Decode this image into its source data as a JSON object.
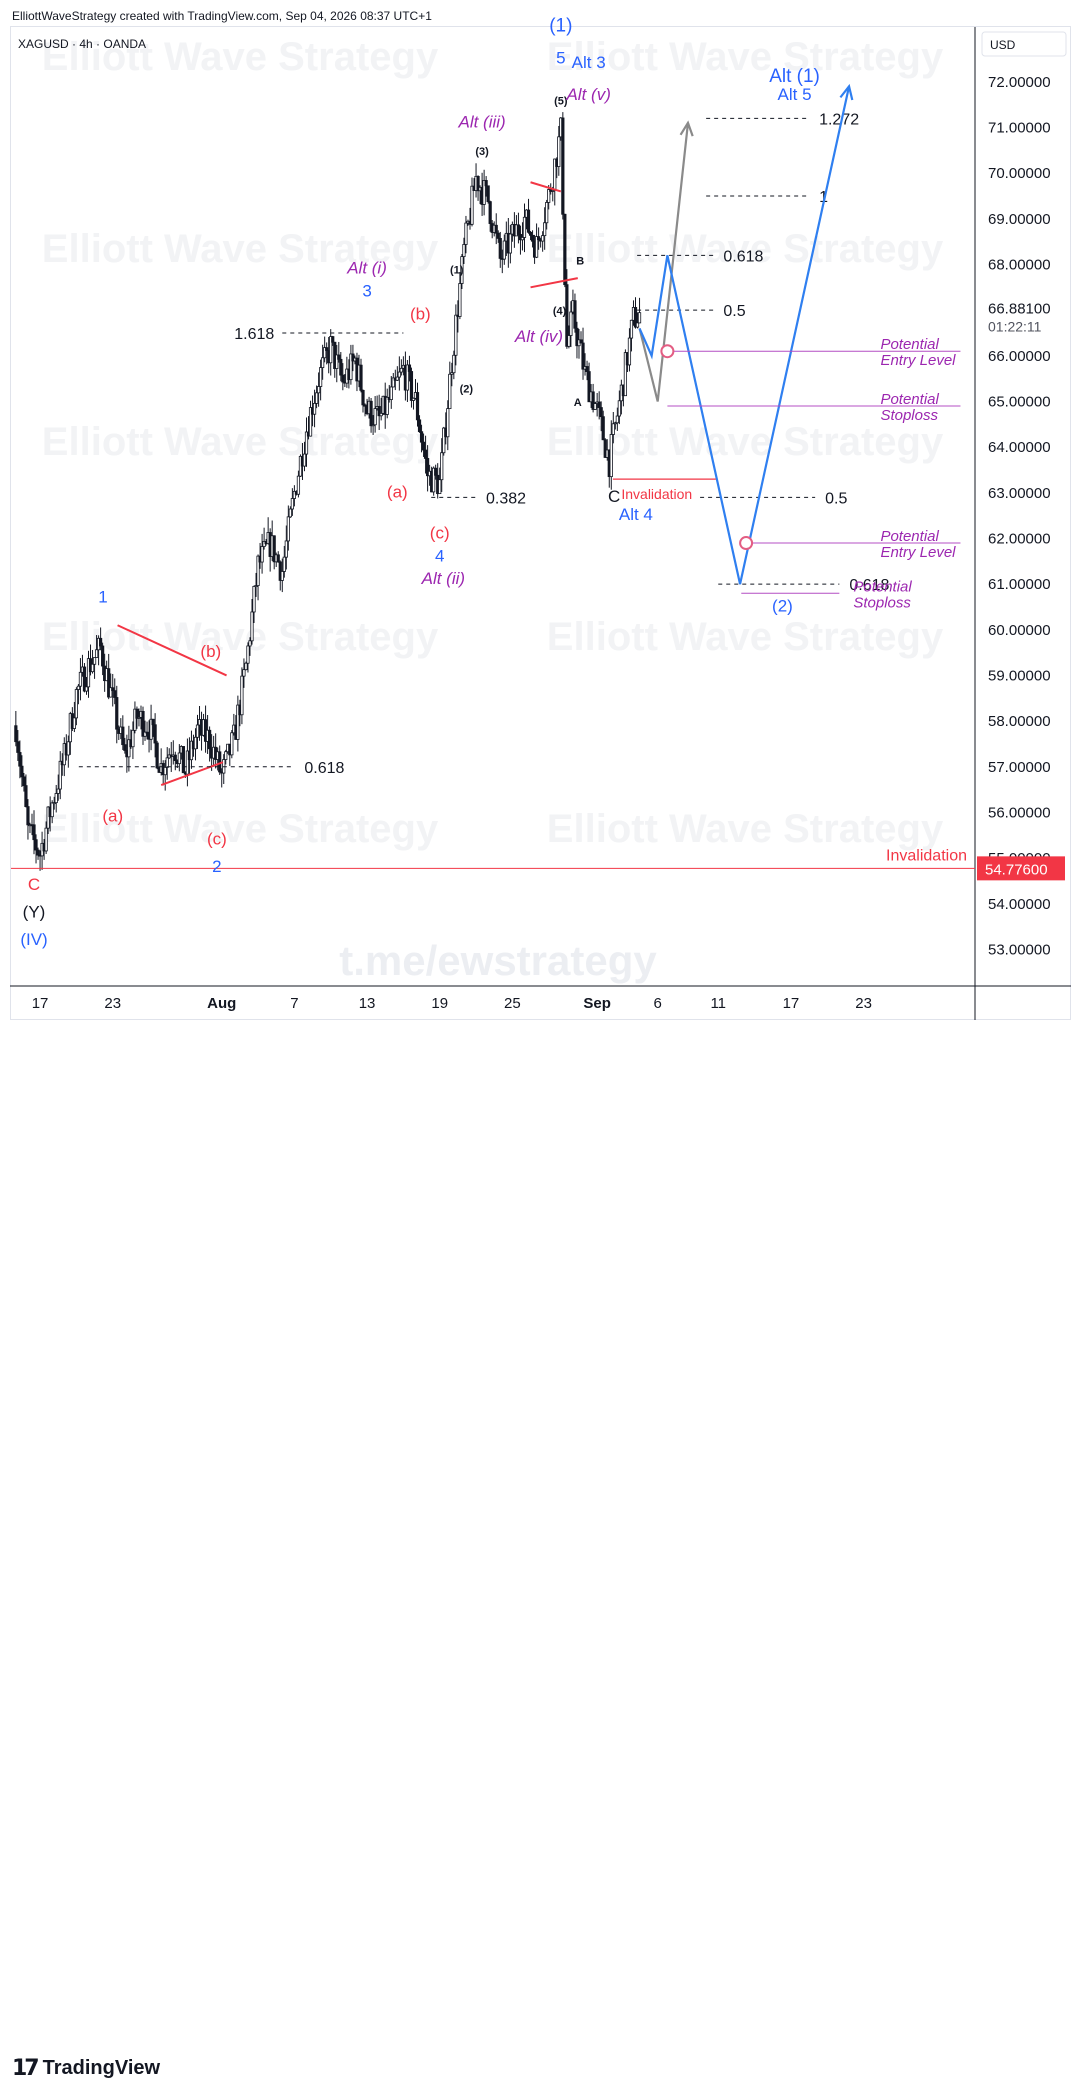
{
  "header": {
    "credit": "ElliottWaveStrategy created with TradingView.com, Sep 04, 2026 08:37 UTC+1",
    "symbol": "XAGUSD · 4h · OANDA",
    "currency": "USD"
  },
  "watermarks": {
    "brand": "Elliott Wave Strategy",
    "url": "t.me/ewstrategy"
  },
  "footer": {
    "logo_icon": "tradingview-logo-icon",
    "logo_text": "TradingView"
  },
  "price_readout": {
    "last_price": "66.88100",
    "countdown": "01:22:11",
    "invalidation_price": "54.77600"
  },
  "colors": {
    "candle": "#131722",
    "blue_wave": "#2962ff",
    "red_wave": "#f23645",
    "purple_wave": "#9c27b0",
    "projection_blue": "#2f7ff0",
    "projection_grey": "#8a8a8a",
    "invalidation": "#f23645"
  },
  "chart_data": {
    "type": "candlestick",
    "ylim": [
      52.2,
      73.2
    ],
    "y_ticks": [
      "53.00000",
      "54.00000",
      "55.00000",
      "56.00000",
      "57.00000",
      "58.00000",
      "59.00000",
      "60.00000",
      "61.00000",
      "62.00000",
      "63.00000",
      "64.00000",
      "65.00000",
      "66.00000",
      "66.88100",
      "68.00000",
      "69.00000",
      "70.00000",
      "71.00000",
      "72.00000"
    ],
    "x_ticks": [
      {
        "label": "17",
        "day": 17
      },
      {
        "label": "23",
        "day": 23
      },
      {
        "label": "Aug",
        "day": 32
      },
      {
        "label": "7",
        "day": 38
      },
      {
        "label": "13",
        "day": 44
      },
      {
        "label": "19",
        "day": 50
      },
      {
        "label": "25",
        "day": 56
      },
      {
        "label": "Sep",
        "day": 63
      },
      {
        "label": "6",
        "day": 68
      },
      {
        "label": "11",
        "day": 73
      },
      {
        "label": "17",
        "day": 79
      },
      {
        "label": "23",
        "day": 85
      }
    ],
    "price_path": [
      [
        15.0,
        57.9
      ],
      [
        16.0,
        55.6
      ],
      [
        17.0,
        55.1
      ],
      [
        18.0,
        56.2
      ],
      [
        19.0,
        57.2
      ],
      [
        20.0,
        58.6
      ],
      [
        21.0,
        59.2
      ],
      [
        22.0,
        59.6
      ],
      [
        23.0,
        58.4
      ],
      [
        24.0,
        57.2
      ],
      [
        25.0,
        58.1
      ],
      [
        26.0,
        57.9
      ],
      [
        27.0,
        57.0
      ],
      [
        28.0,
        57.5
      ],
      [
        29.0,
        56.9
      ],
      [
        30.0,
        57.8
      ],
      [
        31.0,
        57.6
      ],
      [
        32.0,
        56.8
      ],
      [
        33.0,
        57.6
      ],
      [
        34.0,
        59.2
      ],
      [
        35.0,
        61.4
      ],
      [
        36.0,
        61.9
      ],
      [
        37.0,
        61.3
      ],
      [
        38.0,
        63.0
      ],
      [
        39.0,
        64.4
      ],
      [
        40.0,
        65.5
      ],
      [
        41.0,
        66.2
      ],
      [
        42.0,
        65.4
      ],
      [
        43.0,
        65.9
      ],
      [
        44.0,
        64.8
      ],
      [
        45.0,
        64.6
      ],
      [
        46.0,
        65.1
      ],
      [
        47.0,
        65.7
      ],
      [
        48.0,
        65.0
      ],
      [
        49.0,
        63.4
      ],
      [
        50.0,
        63.2
      ],
      [
        51.0,
        65.9
      ],
      [
        52.0,
        68.3
      ],
      [
        53.0,
        69.9
      ],
      [
        54.0,
        69.4
      ],
      [
        55.0,
        68.1
      ],
      [
        56.0,
        68.6
      ],
      [
        57.0,
        69.0
      ],
      [
        58.0,
        68.4
      ],
      [
        59.0,
        69.5
      ],
      [
        60.0,
        70.9
      ],
      [
        60.5,
        66.2
      ],
      [
        61.0,
        66.9
      ],
      [
        62.0,
        65.6
      ],
      [
        63.0,
        64.8
      ],
      [
        64.0,
        63.7
      ],
      [
        65.0,
        65.2
      ],
      [
        66.0,
        66.8
      ],
      [
        66.5,
        66.9
      ]
    ],
    "series": [
      {
        "name": "Alt (1)",
        "color": "#8a8a8a",
        "points": [
          [
            66.5,
            66.6
          ],
          [
            68.0,
            65.0
          ],
          [
            70.5,
            71.1
          ]
        ]
      },
      {
        "name": "(1)",
        "color": "#2f7ff0",
        "points": [
          [
            66.5,
            66.6
          ],
          [
            67.5,
            66.0
          ],
          [
            68.8,
            68.2
          ],
          [
            74.8,
            61.0
          ],
          [
            83.8,
            71.9
          ]
        ]
      }
    ],
    "fib_levels": [
      {
        "label": "1.618",
        "value": 66.5
      },
      {
        "label": "0.618",
        "value": 57.0
      },
      {
        "label": "0.382",
        "value": 62.9
      },
      {
        "label": "1.272",
        "value": 71.2
      },
      {
        "label": "1",
        "value": 69.5
      },
      {
        "label": "0.618",
        "value": 68.2
      },
      {
        "label": "0.5",
        "value": 67.0
      },
      {
        "label": "0.5",
        "value": 62.9
      },
      {
        "label": "0.618",
        "value": 61.0
      }
    ],
    "wave_labels": [
      {
        "text": "C",
        "day": 16.5,
        "price": 54.3,
        "color": "red"
      },
      {
        "text": "(Y)",
        "day": 16.5,
        "price": 53.7,
        "color": "black"
      },
      {
        "text": "(IV)",
        "day": 16.5,
        "price": 53.1,
        "color": "blue"
      },
      {
        "text": "1",
        "day": 22.2,
        "price": 60.6,
        "color": "blue"
      },
      {
        "text": "(a)",
        "day": 23.0,
        "price": 55.8,
        "color": "red"
      },
      {
        "text": "(b)",
        "day": 31.1,
        "price": 59.4,
        "color": "red"
      },
      {
        "text": "(c)",
        "day": 31.6,
        "price": 55.3,
        "color": "red"
      },
      {
        "text": "2",
        "day": 31.6,
        "price": 54.7,
        "color": "blue"
      },
      {
        "text": "Alt (i)",
        "day": 44.0,
        "price": 67.8,
        "color": "purple"
      },
      {
        "text": "3",
        "day": 44.0,
        "price": 67.3,
        "color": "blue"
      },
      {
        "text": "(b)",
        "day": 48.4,
        "price": 66.8,
        "color": "red"
      },
      {
        "text": "(a)",
        "day": 46.5,
        "price": 62.9,
        "color": "red"
      },
      {
        "text": "(c)",
        "day": 50.0,
        "price": 62.0,
        "color": "red"
      },
      {
        "text": "4",
        "day": 50.0,
        "price": 61.5,
        "color": "blue"
      },
      {
        "text": "Alt (ii)",
        "day": 50.3,
        "price": 61.0,
        "color": "purple"
      },
      {
        "text": "Alt (iii)",
        "day": 53.5,
        "price": 71.0,
        "color": "purple"
      },
      {
        "text": "(3)",
        "day": 53.5,
        "price": 70.4,
        "color": "black"
      },
      {
        "text": "(1)",
        "day": 51.4,
        "price": 67.8,
        "color": "black"
      },
      {
        "text": "(2)",
        "day": 52.2,
        "price": 65.2,
        "color": "black"
      },
      {
        "text": "(5)",
        "day": 60.0,
        "price": 71.5,
        "color": "black"
      },
      {
        "text": "(1)",
        "day": 60.0,
        "price": 73.1,
        "color": "blue"
      },
      {
        "text": "5",
        "day": 60.0,
        "price": 72.4,
        "color": "blue"
      },
      {
        "text": "Alt 3",
        "day": 62.3,
        "price": 72.3,
        "color": "blue"
      },
      {
        "text": "Alt (v)",
        "day": 62.3,
        "price": 71.6,
        "color": "purple"
      },
      {
        "text": "(4)",
        "day": 59.9,
        "price": 66.9,
        "color": "black"
      },
      {
        "text": "Alt (iv)",
        "day": 58.2,
        "price": 66.3,
        "color": "purple"
      },
      {
        "text": "B",
        "day": 61.6,
        "price": 68.0,
        "color": "black"
      },
      {
        "text": "A",
        "day": 61.4,
        "price": 64.9,
        "color": "black"
      },
      {
        "text": "C",
        "day": 64.4,
        "price": 62.8,
        "color": "black"
      },
      {
        "text": "Alt 4",
        "day": 66.2,
        "price": 62.4,
        "color": "blue"
      },
      {
        "text": "(2)",
        "day": 78.3,
        "price": 60.4,
        "color": "blue"
      },
      {
        "text": "Alt (1)",
        "day": 79.3,
        "price": 72.0,
        "color": "blue"
      },
      {
        "text": "Alt 5",
        "day": 79.3,
        "price": 71.6,
        "color": "blue"
      }
    ],
    "annotations": [
      {
        "text": "Invalidation",
        "value": 54.776,
        "color": "red"
      },
      {
        "text": "Invalidation",
        "value": 63.3,
        "color": "red"
      },
      {
        "text": "Potential Entry Level",
        "value": 66.1,
        "color": "purple"
      },
      {
        "text": "Potential Stoploss",
        "value": 64.9,
        "color": "purple"
      },
      {
        "text": "Potential Entry Level",
        "value": 61.9,
        "color": "purple"
      },
      {
        "text": "Potential Stoploss",
        "value": 60.8,
        "color": "purple"
      }
    ]
  }
}
